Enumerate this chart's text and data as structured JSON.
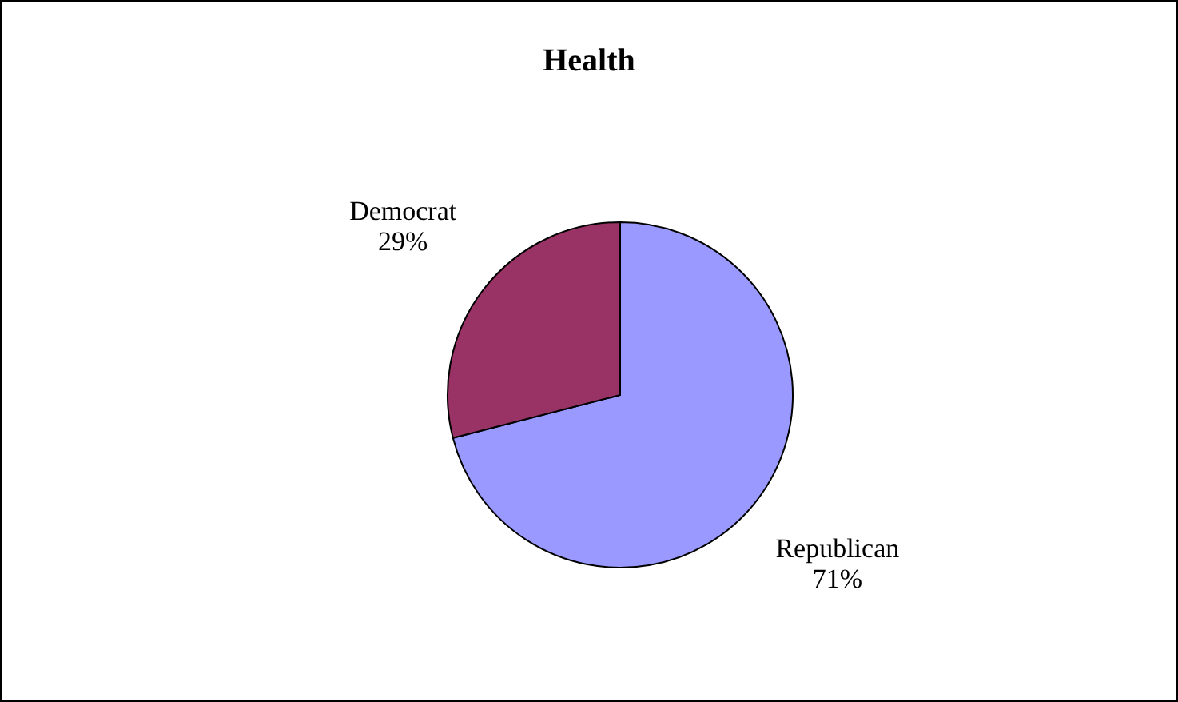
{
  "chart_data": {
    "type": "pie",
    "title": "Health",
    "categories": [
      "Republican",
      "Democrat"
    ],
    "values": [
      71,
      29
    ],
    "colors": [
      "#9999ff",
      "#993366"
    ],
    "value_labels": [
      "71%",
      "29%"
    ]
  }
}
